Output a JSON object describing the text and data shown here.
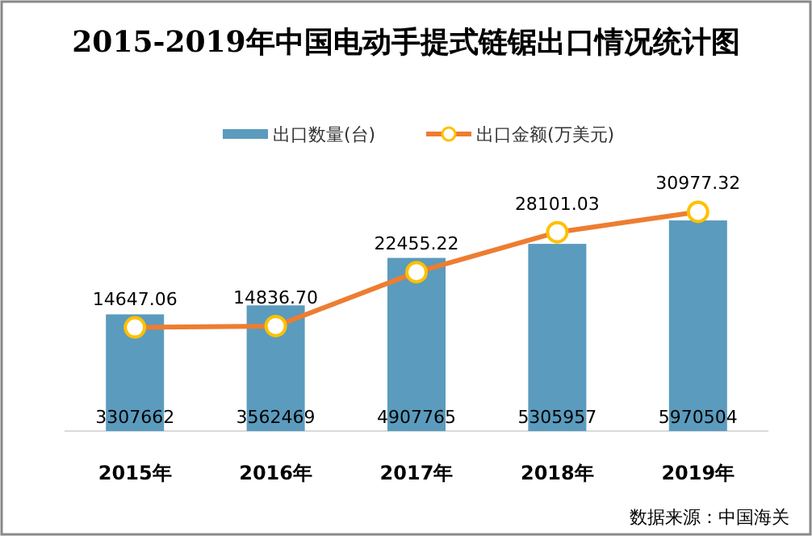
{
  "chart_data": {
    "type": "bar",
    "title": "2015-2019年中国电动手提式链锯出口情况统计图",
    "categories": [
      "2015年",
      "2016年",
      "2017年",
      "2018年",
      "2019年"
    ],
    "series": [
      {
        "name": "出口数量(台)",
        "color": "#5b9bbd",
        "values": [
          3307662,
          3562469,
          4907765,
          5305957,
          5970504
        ]
      },
      {
        "name": "出口金额(万美元)",
        "type": "line",
        "axis": "y2",
        "color": "#ed7d31",
        "marker": "circle",
        "values": [
          14647.06,
          14836.7,
          22455.22,
          28101.03,
          30977.32
        ],
        "value_labels": [
          "14647.06",
          "14836.70",
          "22455.22",
          "28101.03",
          "30977.32"
        ]
      }
    ],
    "data_labels": true,
    "legend": "top",
    "annotations": [
      "数据来源：中国海关"
    ]
  }
}
